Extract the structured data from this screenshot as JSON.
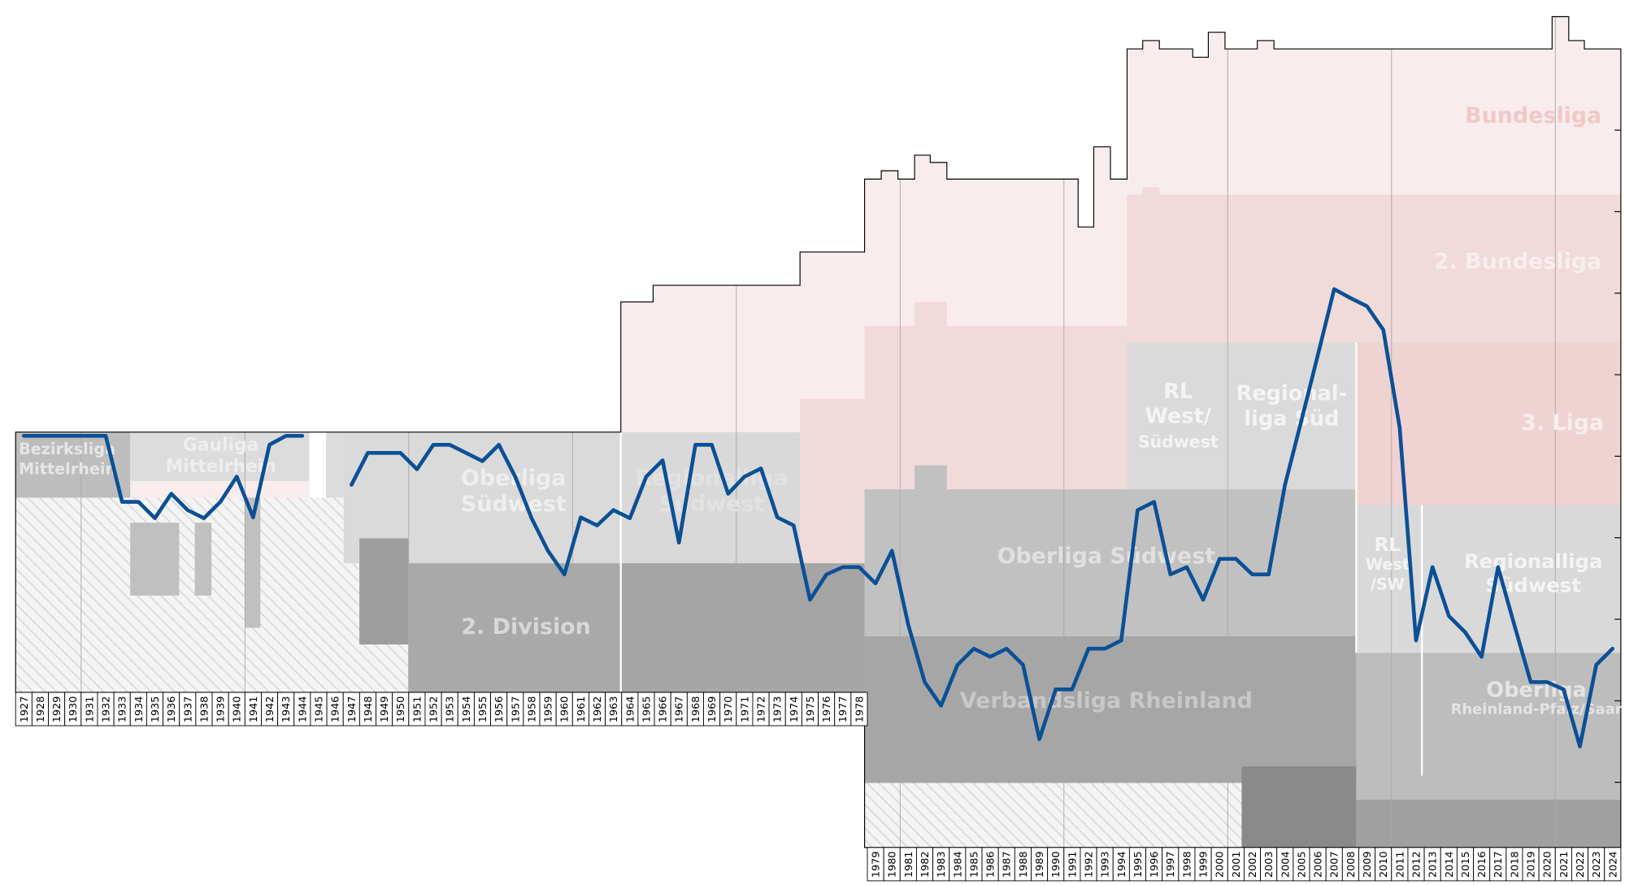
{
  "chart_data": {
    "type": "line",
    "categories": [
      "1927",
      "1928",
      "1929",
      "1930",
      "1931",
      "1932",
      "1933",
      "1934",
      "1935",
      "1936",
      "1937",
      "1938",
      "1939",
      "1940",
      "1941",
      "1942",
      "1943",
      "1944",
      "1945",
      "1946",
      "1947",
      "1948",
      "1949",
      "1950",
      "1951",
      "1952",
      "1953",
      "1954",
      "1955",
      "1956",
      "1957",
      "1958",
      "1959",
      "1960",
      "1961",
      "1962",
      "1963",
      "1964",
      "1965",
      "1966",
      "1967",
      "1968",
      "1969",
      "1970",
      "1971",
      "1972",
      "1973",
      "1974",
      "1975",
      "1976",
      "1977",
      "1978",
      "1979",
      "1980",
      "1981",
      "1982",
      "1983",
      "1984",
      "1985",
      "1986",
      "1987",
      "1988",
      "1989",
      "1990",
      "1991",
      "1992",
      "1993",
      "1994",
      "1995",
      "1996",
      "1997",
      "1998",
      "1999",
      "2000",
      "2001",
      "2002",
      "2003",
      "2004",
      "2005",
      "2006",
      "2007",
      "2008",
      "2009",
      "2010",
      "2011",
      "2012",
      "2013",
      "2014",
      "2015",
      "2016",
      "2017",
      "2018",
      "2019",
      "2020",
      "2021",
      "2022",
      "2023",
      "2024"
    ],
    "series": [
      {
        "color": "#0a5096",
        "values": [
          47.5,
          47.5,
          47.5,
          47.5,
          47.5,
          47.5,
          55.6,
          55.6,
          57.6,
          54.6,
          56.6,
          57.6,
          55.6,
          52.5,
          57.5,
          48.6,
          47.5,
          47.5,
          null,
          null,
          53.5,
          49.6,
          49.6,
          49.6,
          51.6,
          48.6,
          48.6,
          49.6,
          50.6,
          48.6,
          52.5,
          57.6,
          61.6,
          64.5,
          57.5,
          58.5,
          56.6,
          57.6,
          52.5,
          50.5,
          60.6,
          48.6,
          48.6,
          54.6,
          52.5,
          51.5,
          57.5,
          58.5,
          67.6,
          64.5,
          63.6,
          63.6,
          65.6,
          61.6,
          70.7,
          77.7,
          80.6,
          75.6,
          73.6,
          74.6,
          73.6,
          75.6,
          84.7,
          78.6,
          78.6,
          73.6,
          73.6,
          72.6,
          56.6,
          55.6,
          64.5,
          63.6,
          67.6,
          62.6,
          62.6,
          64.5,
          64.5,
          53.5,
          45.6,
          37.6,
          29.5,
          30.6,
          31.6,
          34.5,
          46.5,
          72.6,
          63.6,
          69.6,
          71.6,
          74.6,
          63.6,
          70.7,
          77.7,
          77.7,
          78.6,
          85.6,
          75.6,
          73.6
        ]
      }
    ],
    "ylim": [
      0,
      98
    ],
    "yticks": [
      10,
      20,
      30,
      40,
      50,
      60,
      70,
      80,
      90
    ],
    "annotations": [
      {
        "lines": [
          "Bezirksliga",
          "Mittelrhein"
        ]
      },
      {
        "lines": [
          "Gauliga",
          "Mittelrhein"
        ]
      },
      {
        "lines": [
          "Oberliga",
          "Südwest"
        ]
      },
      {
        "lines": [
          "2. Division"
        ]
      },
      {
        "lines": [
          "Regionalliga",
          "Südwest"
        ]
      },
      {
        "lines": [
          "Oberliga Südwest"
        ]
      },
      {
        "lines": [
          "Verbandsliga Rheinland"
        ]
      },
      {
        "lines": [
          "RL",
          "West/",
          "Südwest"
        ]
      },
      {
        "lines": [
          "Regional-",
          "liga Süd"
        ]
      },
      {
        "lines": [
          "RL",
          "West",
          "/SW"
        ]
      },
      {
        "lines": [
          "Regionalliga",
          "Südwest"
        ]
      },
      {
        "lines": [
          "Oberliga",
          "Rheinland-Pfalz/Saar"
        ]
      },
      {
        "lines": [
          "Bundesliga"
        ]
      },
      {
        "lines": [
          "2. Bundesliga"
        ]
      },
      {
        "lines": [
          "3. Liga"
        ]
      }
    ]
  }
}
